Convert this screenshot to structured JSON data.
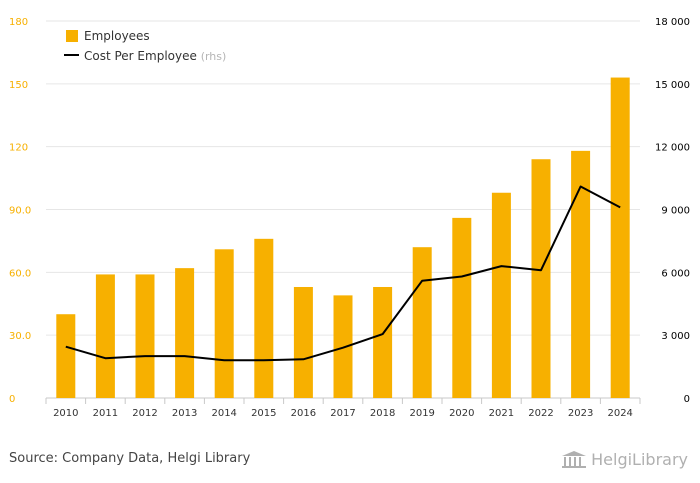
{
  "chart_data": {
    "type": "bar",
    "categories": [
      "2010",
      "2011",
      "2012",
      "2013",
      "2014",
      "2015",
      "2016",
      "2017",
      "2018",
      "2019",
      "2020",
      "2021",
      "2022",
      "2023",
      "2024"
    ],
    "series": [
      {
        "name": "Employees",
        "type": "bar",
        "axis": "left",
        "color": "#F7B000",
        "values": [
          40,
          59,
          59,
          62,
          71,
          76,
          53,
          49,
          53,
          72,
          86,
          98,
          114,
          118,
          153
        ]
      },
      {
        "name": "Cost Per Employee",
        "legend_suffix": "(rhs)",
        "type": "line",
        "axis": "right",
        "color": "#000000",
        "values": [
          2450,
          1900,
          2000,
          2000,
          1800,
          1800,
          1850,
          2400,
          3050,
          5600,
          5800,
          6300,
          6100,
          10100,
          9100
        ]
      }
    ],
    "left_axis": {
      "ylim": [
        0,
        180
      ],
      "ticks": [
        "0",
        "30.0",
        "60.0",
        "90.0",
        "120",
        "150",
        "180"
      ],
      "tick_values": [
        0,
        30,
        60,
        90,
        120,
        150,
        180
      ],
      "color": "#F7B000"
    },
    "right_axis": {
      "ylim": [
        0,
        18000
      ],
      "ticks": [
        "0",
        "3 000",
        "6 000",
        "9 000",
        "12 000",
        "15 000",
        "18 000"
      ],
      "tick_values": [
        0,
        3000,
        6000,
        9000,
        12000,
        15000,
        18000
      ],
      "color": "#000000"
    },
    "grid": true,
    "legend_position": "top-left"
  },
  "footer": {
    "source": "Source: Company Data, Helgi Library",
    "logo": "HelgiLibrary"
  }
}
